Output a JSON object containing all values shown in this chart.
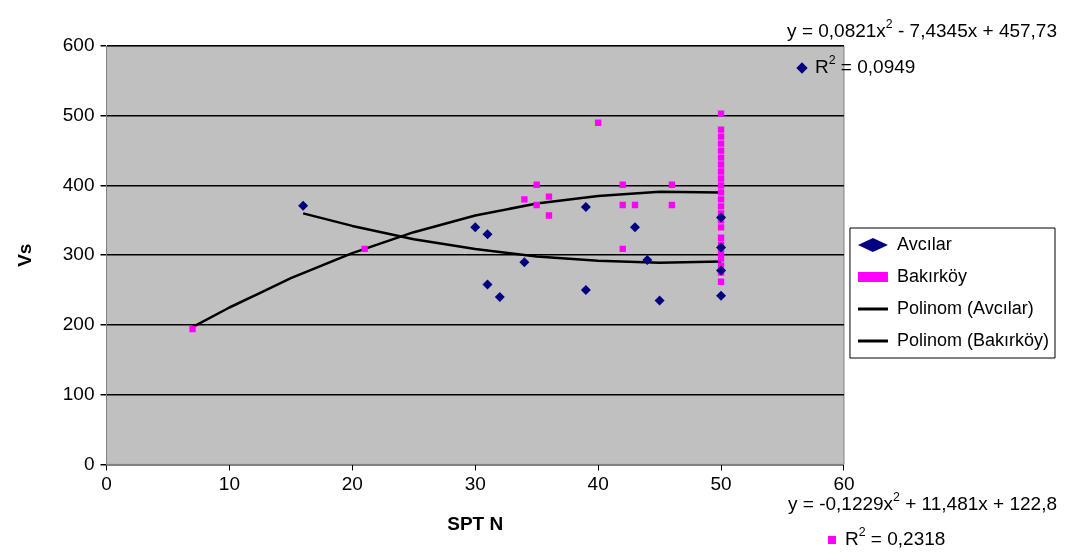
{
  "chart_data": {
    "type": "scatter",
    "xlabel": "SPT N",
    "ylabel": "Vs",
    "xlim": [
      0,
      60
    ],
    "xticks": [
      0,
      10,
      20,
      30,
      40,
      50,
      60
    ],
    "ylim": [
      0,
      600
    ],
    "yticks": [
      0,
      100,
      200,
      300,
      400,
      500,
      600
    ],
    "grid": "y",
    "legend": "right",
    "series": [
      {
        "name": "Avcılar",
        "marker": "diamond",
        "color": "#000080",
        "x": [
          16,
          30,
          31,
          31,
          32,
          34,
          39,
          39,
          43,
          44,
          45,
          50,
          50,
          50,
          50
        ],
        "values": [
          371,
          340,
          330,
          258,
          240,
          290,
          369,
          250,
          340,
          293,
          235,
          354,
          311,
          278,
          242
        ]
      },
      {
        "name": "Bakırköy",
        "marker": "square",
        "color": "#ff00ff",
        "x": [
          7,
          21,
          34,
          35,
          35,
          36,
          36,
          40,
          42,
          42,
          42,
          43,
          46,
          46,
          50,
          50,
          50,
          50,
          50,
          50,
          50,
          50,
          50,
          50,
          50,
          50,
          50,
          50,
          50,
          50,
          50,
          50,
          50,
          50,
          50,
          50,
          50
        ],
        "values": [
          194,
          309,
          380,
          401,
          372,
          384,
          357,
          490,
          401,
          372,
          309,
          372,
          401,
          372,
          503,
          480,
          470,
          460,
          450,
          440,
          430,
          420,
          410,
          400,
          390,
          380,
          370,
          360,
          350,
          340,
          325,
          315,
          305,
          295,
          285,
          275,
          262
        ]
      },
      {
        "name": "Polinom (Avcılar)",
        "type": "line",
        "marker": "none",
        "color": "#000000",
        "x": [
          16,
          20,
          25,
          30,
          35,
          40,
          45,
          50
        ],
        "values": [
          360,
          342,
          323,
          309,
          298,
          292,
          289,
          291
        ]
      },
      {
        "name": "Polinom (Bakırköy)",
        "type": "line",
        "marker": "none",
        "color": "#000000",
        "x": [
          7,
          10,
          15,
          20,
          25,
          30,
          35,
          40,
          45,
          50
        ],
        "values": [
          197,
          225,
          267,
          303,
          333,
          357,
          374,
          385,
          391,
          390
        ]
      }
    ],
    "annotations": [
      "y = 0,0821x$^{2}$ - 7,4345x + 457,73",
      "R$^{2}$ = 0,0949",
      "y = -0,1229x$^{2}$ + 11,481x + 122,8",
      "R$^{2}$ = 0,2318"
    ]
  }
}
